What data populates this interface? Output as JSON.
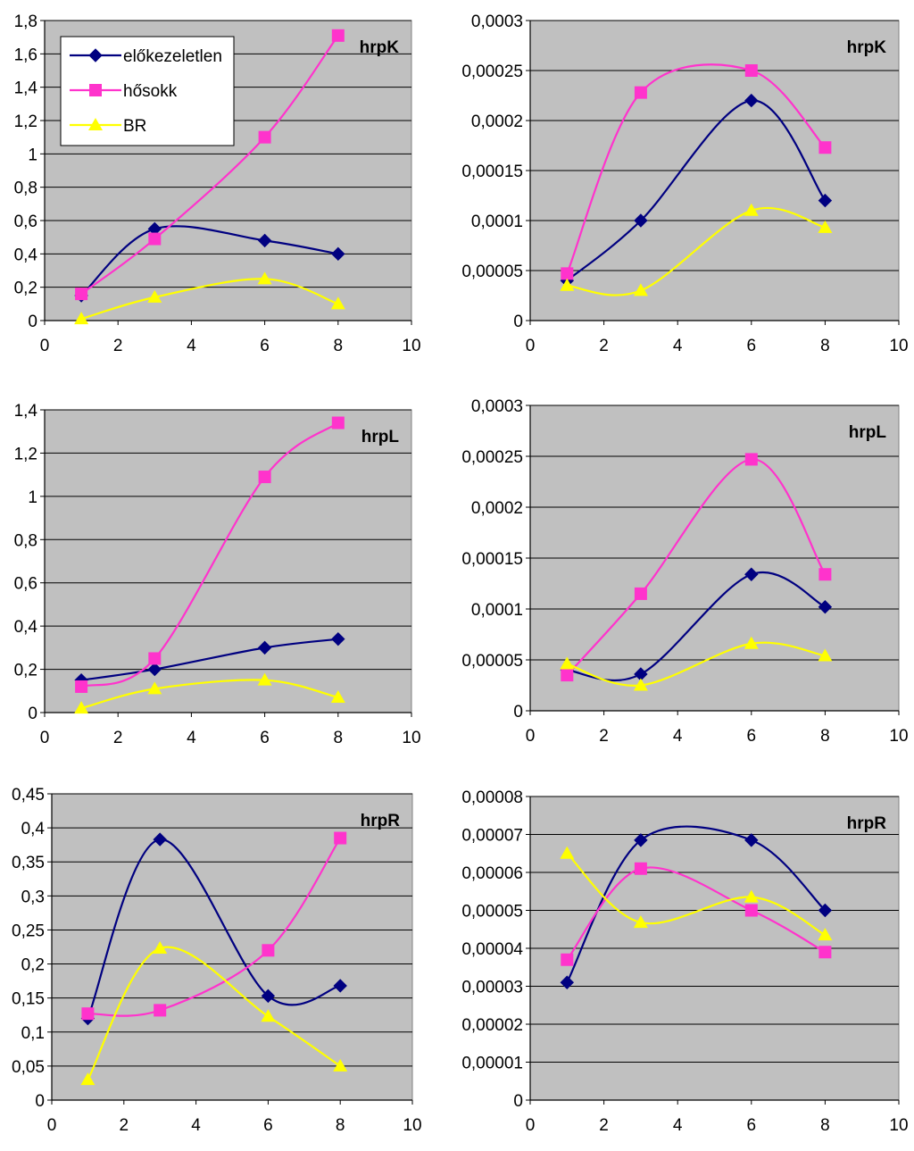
{
  "legend": {
    "entries": [
      {
        "label": "előkezeletlen",
        "series": "s1"
      },
      {
        "label": "hősokk",
        "series": "s2"
      },
      {
        "label": "BR",
        "series": "s3"
      }
    ]
  },
  "colors": {
    "s1": "#000080",
    "s2": "#ff33cc",
    "s3": "#ffff00",
    "plot_bg": "#c0c0c0",
    "grid": "#000000"
  },
  "chart_data": [
    {
      "type": "line",
      "title": "hrpK",
      "x_ticks": [
        "0",
        "2",
        "4",
        "6",
        "8",
        "10"
      ],
      "xlim": [
        0,
        10
      ],
      "ylim": [
        0,
        1.8
      ],
      "y_ticks": [
        "0",
        "0,2",
        "0,4",
        "0,6",
        "0,8",
        "1",
        "1,2",
        "1,4",
        "1,6",
        "1,8"
      ],
      "show_legend": true,
      "legend_position": "top-left",
      "series": [
        {
          "name": "előkezeletlen",
          "x": [
            1,
            3,
            6,
            8
          ],
          "values": [
            0.15,
            0.55,
            0.48,
            0.4
          ]
        },
        {
          "name": "hősokk",
          "x": [
            1,
            3,
            6,
            8
          ],
          "values": [
            0.16,
            0.49,
            1.1,
            1.71
          ]
        },
        {
          "name": "BR",
          "x": [
            1,
            3,
            6,
            8
          ],
          "values": [
            0.01,
            0.14,
            0.25,
            0.1
          ]
        }
      ]
    },
    {
      "type": "line",
      "title": "hrpK",
      "x_ticks": [
        "0",
        "2",
        "4",
        "6",
        "8",
        "10"
      ],
      "xlim": [
        0,
        10
      ],
      "ylim": [
        0,
        0.0003
      ],
      "y_ticks": [
        "0",
        "0,00005",
        "0,0001",
        "0,00015",
        "0,0002",
        "0,00025",
        "0,0003"
      ],
      "show_legend": false,
      "series": [
        {
          "name": "előkezeletlen",
          "x": [
            1,
            3,
            6,
            8
          ],
          "values": [
            4e-05,
            0.0001,
            0.00022,
            0.00012
          ]
        },
        {
          "name": "hősokk",
          "x": [
            1,
            3,
            6,
            8
          ],
          "values": [
            4.7e-05,
            0.000228,
            0.00025,
            0.000173
          ]
        },
        {
          "name": "BR",
          "x": [
            1,
            3,
            6,
            8
          ],
          "values": [
            3.5e-05,
            3e-05,
            0.00011,
            9.3e-05
          ]
        }
      ]
    },
    {
      "type": "line",
      "title": "hrpL",
      "x_ticks": [
        "0",
        "2",
        "4",
        "6",
        "8",
        "10"
      ],
      "xlim": [
        0,
        10
      ],
      "ylim": [
        0,
        1.4
      ],
      "y_ticks": [
        "0",
        "0,2",
        "0,4",
        "0,6",
        "0,8",
        "1",
        "1,2",
        "1,4"
      ],
      "show_legend": false,
      "series": [
        {
          "name": "előkezeletlen",
          "x": [
            1,
            3,
            6,
            8
          ],
          "values": [
            0.15,
            0.2,
            0.3,
            0.34
          ]
        },
        {
          "name": "hősokk",
          "x": [
            1,
            3,
            6,
            8
          ],
          "values": [
            0.12,
            0.25,
            1.09,
            1.34
          ]
        },
        {
          "name": "BR",
          "x": [
            1,
            3,
            6,
            8
          ],
          "values": [
            0.02,
            0.11,
            0.15,
            0.07
          ]
        }
      ]
    },
    {
      "type": "line",
      "title": "hrpL",
      "x_ticks": [
        "0",
        "2",
        "4",
        "6",
        "8",
        "10"
      ],
      "xlim": [
        0,
        10
      ],
      "ylim": [
        0,
        0.0003
      ],
      "y_ticks": [
        "0",
        "0,00005",
        "0,0001",
        "0,00015",
        "0,0002",
        "0,00025",
        "0,0003"
      ],
      "show_legend": false,
      "series": [
        {
          "name": "előkezeletlen",
          "x": [
            1,
            3,
            6,
            8
          ],
          "values": [
            4e-05,
            3.6e-05,
            0.000134,
            0.000102
          ]
        },
        {
          "name": "hősokk",
          "x": [
            1,
            3,
            6,
            8
          ],
          "values": [
            3.5e-05,
            0.000115,
            0.000247,
            0.000134
          ]
        },
        {
          "name": "BR",
          "x": [
            1,
            3,
            6,
            8
          ],
          "values": [
            4.6e-05,
            2.5e-05,
            6.6e-05,
            5.4e-05
          ]
        }
      ]
    },
    {
      "type": "line",
      "title": "hrpR",
      "x_ticks": [
        "0",
        "2",
        "4",
        "6",
        "8",
        "10"
      ],
      "xlim": [
        0,
        10
      ],
      "ylim": [
        0,
        0.45
      ],
      "y_ticks": [
        "0",
        "0,05",
        "0,1",
        "0,15",
        "0,2",
        "0,25",
        "0,3",
        "0,35",
        "0,4",
        "0,45"
      ],
      "show_legend": false,
      "series": [
        {
          "name": "előkezeletlen",
          "x": [
            1,
            3,
            6,
            8
          ],
          "values": [
            0.12,
            0.383,
            0.153,
            0.168
          ]
        },
        {
          "name": "hősokk",
          "x": [
            1,
            3,
            6,
            8
          ],
          "values": [
            0.127,
            0.132,
            0.22,
            0.385
          ]
        },
        {
          "name": "BR",
          "x": [
            1,
            3,
            6,
            8
          ],
          "values": [
            0.03,
            0.223,
            0.123,
            0.05
          ]
        }
      ]
    },
    {
      "type": "line",
      "title": "hrpR",
      "x_ticks": [
        "0",
        "2",
        "4",
        "6",
        "8",
        "10"
      ],
      "xlim": [
        0,
        10
      ],
      "ylim": [
        0,
        8e-05
      ],
      "y_ticks": [
        "0",
        "0,00001",
        "0,00002",
        "0,00003",
        "0,00004",
        "0,00005",
        "0,00006",
        "0,00007",
        "0,00008"
      ],
      "show_legend": false,
      "series": [
        {
          "name": "előkezeletlen",
          "x": [
            1,
            3,
            6,
            8
          ],
          "values": [
            3.1e-05,
            6.85e-05,
            6.85e-05,
            5e-05
          ]
        },
        {
          "name": "hősokk",
          "x": [
            1,
            3,
            6,
            8
          ],
          "values": [
            3.7e-05,
            6.1e-05,
            5e-05,
            3.9e-05
          ]
        },
        {
          "name": "BR",
          "x": [
            1,
            3,
            6,
            8
          ],
          "values": [
            6.5e-05,
            4.68e-05,
            5.35e-05,
            4.35e-05
          ]
        }
      ]
    }
  ]
}
